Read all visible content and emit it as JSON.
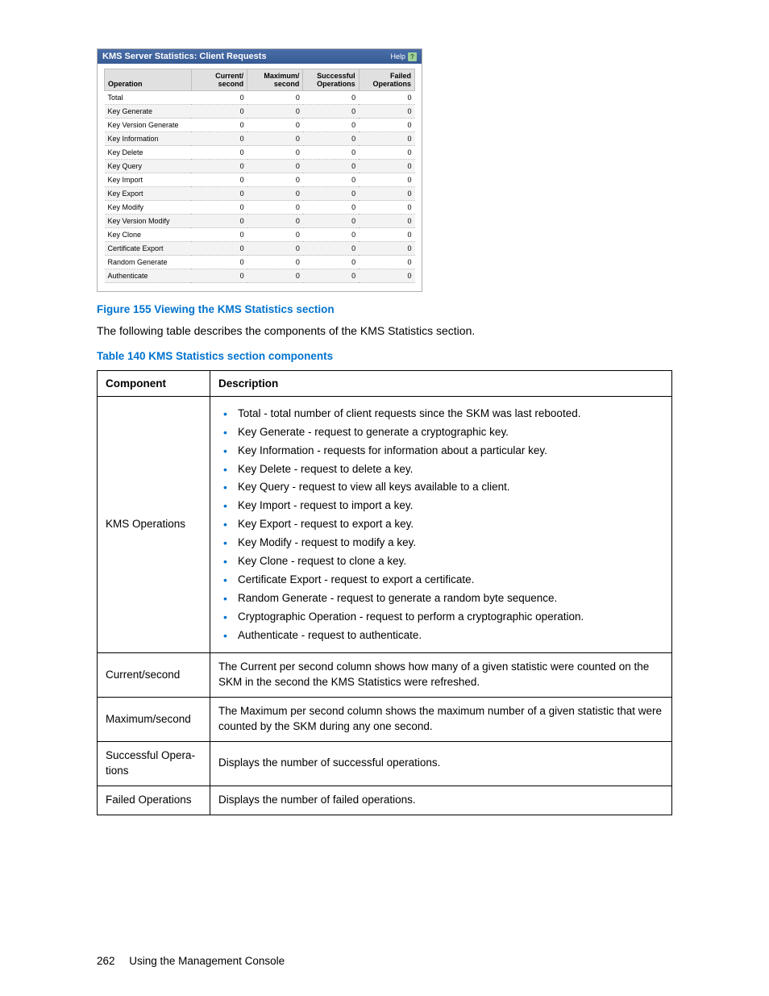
{
  "screenshot": {
    "titlebar": {
      "title": "KMS Server Statistics: Client Requests",
      "help_label": "Help",
      "help_glyph": "?"
    },
    "headers": {
      "operation": "Operation",
      "current": "Current/\nsecond",
      "maximum": "Maximum/\nsecond",
      "successful": "Successful\nOperations",
      "failed": "Failed\nOperations"
    },
    "rows": [
      {
        "op": "Total",
        "cur": "0",
        "max": "0",
        "suc": "0",
        "fail": "0"
      },
      {
        "op": "Key Generate",
        "cur": "0",
        "max": "0",
        "suc": "0",
        "fail": "0"
      },
      {
        "op": "Key Version Generate",
        "cur": "0",
        "max": "0",
        "suc": "0",
        "fail": "0"
      },
      {
        "op": "Key Information",
        "cur": "0",
        "max": "0",
        "suc": "0",
        "fail": "0"
      },
      {
        "op": "Key Delete",
        "cur": "0",
        "max": "0",
        "suc": "0",
        "fail": "0"
      },
      {
        "op": "Key Query",
        "cur": "0",
        "max": "0",
        "suc": "0",
        "fail": "0"
      },
      {
        "op": "Key Import",
        "cur": "0",
        "max": "0",
        "suc": "0",
        "fail": "0"
      },
      {
        "op": "Key Export",
        "cur": "0",
        "max": "0",
        "suc": "0",
        "fail": "0"
      },
      {
        "op": "Key Modify",
        "cur": "0",
        "max": "0",
        "suc": "0",
        "fail": "0"
      },
      {
        "op": "Key Version Modify",
        "cur": "0",
        "max": "0",
        "suc": "0",
        "fail": "0"
      },
      {
        "op": "Key Clone",
        "cur": "0",
        "max": "0",
        "suc": "0",
        "fail": "0"
      },
      {
        "op": "Certificate Export",
        "cur": "0",
        "max": "0",
        "suc": "0",
        "fail": "0"
      },
      {
        "op": "Random Generate",
        "cur": "0",
        "max": "0",
        "suc": "0",
        "fail": "0"
      },
      {
        "op": "Authenticate",
        "cur": "0",
        "max": "0",
        "suc": "0",
        "fail": "0"
      }
    ],
    "colors": {
      "titlebar_bg_top": "#4a6ea8",
      "titlebar_bg_bottom": "#365a94",
      "header_bg": "#e0e0e0",
      "alt_row_bg": "#f3f3f3",
      "border": "#bfbfbf"
    }
  },
  "figure_caption": "Figure 155 Viewing the KMS Statistics section",
  "body_paragraph": "The following table describes the components of the KMS Statistics section.",
  "table_caption": "Table 140 KMS Statistics section components",
  "comp_table": {
    "headers": {
      "component": "Component",
      "description": "Description"
    },
    "rows": [
      {
        "component": "KMS Operations",
        "bullets": [
          "Total - total number of client requests since the SKM was last rebooted.",
          "Key Generate - request to generate a cryptographic key.",
          "Key Information - requests for information about a particular key.",
          "Key Delete - request to delete a key.",
          "Key Query - request to view all keys available to a client.",
          "Key Import - request to import a key.",
          "Key Export - request to export a key.",
          "Key Modify - request to modify a key.",
          "Key Clone - request to clone a key.",
          "Certificate Export - request to export a certificate.",
          "Random Generate - request to generate a random byte sequence.",
          "Cryptographic Operation - request to perform a cryptographic operation.",
          "Authenticate - request to authenticate."
        ]
      },
      {
        "component": "Current/second",
        "description": "The Current per second column shows how many of a given statistic were counted on the SKM in the second the KMS Statistics were refreshed."
      },
      {
        "component": "Maximum/second",
        "description": "The Maximum per second column shows the maximum number of a given statistic that were counted by the SKM during any one second."
      },
      {
        "component": "Successful Opera­tions",
        "description": "Displays the number of successful operations."
      },
      {
        "component": "Failed Operations",
        "description": "Displays the number of failed operations."
      }
    ]
  },
  "footer": {
    "page_number": "262",
    "section": "Using the Management Console"
  },
  "colors": {
    "accent": "#0073cf",
    "text": "#000000",
    "background": "#ffffff"
  }
}
